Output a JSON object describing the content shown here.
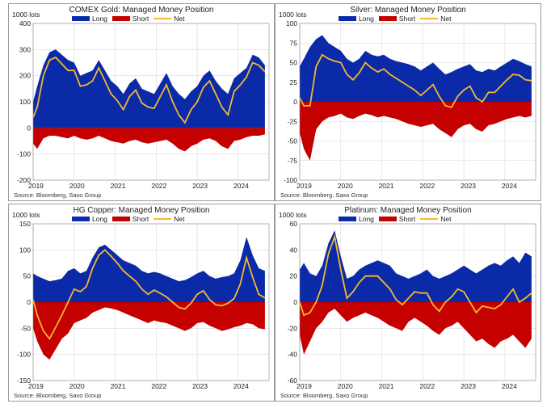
{
  "legend": {
    "long": "Long",
    "short": "Short",
    "net": "Net"
  },
  "colors": {
    "long": "#0a2aa8",
    "short": "#c40000",
    "net": "#f5b82e",
    "grid": "#d9d9d9"
  },
  "chart_data": [
    {
      "type": "area",
      "title": "COMEX Gold: Managed Money Position",
      "units": "1000 lots",
      "source": "Source: Bloomberg, Saxo Group",
      "ylim": [
        -200,
        400
      ],
      "yticks": [
        -200,
        -100,
        0,
        100,
        200,
        300,
        400
      ],
      "xticks": [
        "2019",
        "2020",
        "2021",
        "2022",
        "2023",
        "2024"
      ],
      "xlim": [
        2019.0,
        2024.75
      ],
      "x": [
        2019.0,
        2019.1,
        2019.25,
        2019.4,
        2019.55,
        2019.7,
        2019.85,
        2020.0,
        2020.15,
        2020.3,
        2020.45,
        2020.6,
        2020.75,
        2020.9,
        2021.05,
        2021.2,
        2021.35,
        2021.5,
        2021.65,
        2021.8,
        2021.95,
        2022.1,
        2022.25,
        2022.4,
        2022.55,
        2022.7,
        2022.85,
        2023.0,
        2023.15,
        2023.3,
        2023.45,
        2023.6,
        2023.75,
        2023.9,
        2024.05,
        2024.2,
        2024.35,
        2024.5,
        2024.65
      ],
      "series": [
        {
          "name": "Long",
          "values": [
            100,
            160,
            240,
            290,
            300,
            280,
            260,
            250,
            200,
            210,
            220,
            260,
            220,
            180,
            160,
            130,
            170,
            190,
            150,
            140,
            130,
            170,
            210,
            160,
            130,
            110,
            140,
            160,
            200,
            220,
            180,
            150,
            130,
            190,
            210,
            230,
            280,
            270,
            240
          ]
        },
        {
          "name": "Short",
          "values": [
            -60,
            -80,
            -40,
            -30,
            -30,
            -35,
            -40,
            -30,
            -40,
            -45,
            -40,
            -30,
            -40,
            -50,
            -55,
            -60,
            -50,
            -45,
            -55,
            -60,
            -55,
            -50,
            -45,
            -60,
            -80,
            -90,
            -70,
            -60,
            -45,
            -40,
            -50,
            -70,
            -80,
            -50,
            -45,
            -35,
            -30,
            -30,
            -25
          ]
        },
        {
          "name": "Net",
          "values": [
            40,
            80,
            200,
            260,
            270,
            245,
            220,
            220,
            160,
            165,
            180,
            230,
            180,
            130,
            105,
            70,
            120,
            145,
            95,
            80,
            75,
            120,
            165,
            100,
            50,
            20,
            70,
            100,
            155,
            180,
            130,
            80,
            50,
            140,
            165,
            195,
            250,
            240,
            215
          ]
        }
      ]
    },
    {
      "type": "area",
      "title": "Silver: Managed Money Position",
      "units": "1000 lots",
      "source": "Source: Bloomberg, Saxo Group",
      "ylim": [
        -100,
        100
      ],
      "yticks": [
        -100,
        -75,
        -50,
        -25,
        0,
        25,
        50,
        75,
        100
      ],
      "xticks": [
        "2019",
        "2020",
        "2021",
        "2022",
        "2023",
        "2024"
      ],
      "xlim": [
        2019.0,
        2024.75
      ],
      "x": [
        2019.0,
        2019.1,
        2019.25,
        2019.4,
        2019.55,
        2019.7,
        2019.85,
        2020.0,
        2020.15,
        2020.3,
        2020.45,
        2020.6,
        2020.75,
        2020.9,
        2021.05,
        2021.2,
        2021.35,
        2021.5,
        2021.65,
        2021.8,
        2021.95,
        2022.1,
        2022.25,
        2022.4,
        2022.55,
        2022.7,
        2022.85,
        2023.0,
        2023.15,
        2023.3,
        2023.45,
        2023.6,
        2023.75,
        2023.9,
        2024.05,
        2024.2,
        2024.35,
        2024.5,
        2024.65
      ],
      "series": [
        {
          "name": "Long",
          "values": [
            45,
            55,
            70,
            80,
            85,
            75,
            70,
            65,
            55,
            50,
            55,
            65,
            60,
            58,
            60,
            55,
            52,
            50,
            48,
            45,
            40,
            45,
            50,
            42,
            35,
            38,
            42,
            45,
            48,
            40,
            38,
            42,
            40,
            45,
            50,
            55,
            52,
            48,
            45
          ]
        },
        {
          "name": "Short",
          "values": [
            -40,
            -60,
            -75,
            -35,
            -25,
            -20,
            -18,
            -15,
            -20,
            -22,
            -18,
            -15,
            -17,
            -20,
            -18,
            -20,
            -22,
            -25,
            -28,
            -30,
            -32,
            -30,
            -28,
            -35,
            -40,
            -45,
            -35,
            -30,
            -28,
            -35,
            -38,
            -30,
            -28,
            -25,
            -22,
            -20,
            -18,
            -20,
            -18
          ]
        },
        {
          "name": "Net",
          "values": [
            5,
            -5,
            -5,
            45,
            60,
            55,
            52,
            50,
            35,
            28,
            37,
            50,
            43,
            38,
            42,
            35,
            30,
            25,
            20,
            15,
            8,
            15,
            22,
            7,
            -5,
            -7,
            7,
            15,
            20,
            5,
            0,
            12,
            12,
            20,
            28,
            35,
            34,
            28,
            27
          ]
        }
      ]
    },
    {
      "type": "area",
      "title": "HG Copper: Managed Money Position",
      "units": "1000 lots",
      "source": "Source: Bloomberg, Saxo Group",
      "ylim": [
        -150,
        150
      ],
      "yticks": [
        -150,
        -100,
        -50,
        0,
        50,
        100,
        150
      ],
      "xticks": [
        "2019",
        "2020",
        "2021",
        "2022",
        "2023",
        "2024"
      ],
      "xlim": [
        2019.0,
        2024.75
      ],
      "x": [
        2019.0,
        2019.1,
        2019.25,
        2019.4,
        2019.55,
        2019.7,
        2019.85,
        2020.0,
        2020.15,
        2020.3,
        2020.45,
        2020.6,
        2020.75,
        2020.9,
        2021.05,
        2021.2,
        2021.35,
        2021.5,
        2021.65,
        2021.8,
        2021.95,
        2022.1,
        2022.25,
        2022.4,
        2022.55,
        2022.7,
        2022.85,
        2023.0,
        2023.15,
        2023.3,
        2023.45,
        2023.6,
        2023.75,
        2023.9,
        2024.05,
        2024.2,
        2024.35,
        2024.5,
        2024.65
      ],
      "series": [
        {
          "name": "Long",
          "values": [
            55,
            50,
            45,
            40,
            42,
            45,
            60,
            65,
            55,
            60,
            85,
            105,
            110,
            100,
            90,
            80,
            75,
            70,
            60,
            55,
            58,
            55,
            50,
            45,
            40,
            42,
            48,
            55,
            60,
            50,
            45,
            48,
            50,
            55,
            80,
            125,
            90,
            65,
            60
          ]
        },
        {
          "name": "Short",
          "values": [
            -50,
            -75,
            -100,
            -110,
            -90,
            -70,
            -60,
            -40,
            -35,
            -30,
            -20,
            -15,
            -10,
            -12,
            -15,
            -20,
            -25,
            -30,
            -35,
            -40,
            -35,
            -38,
            -40,
            -45,
            -50,
            -55,
            -50,
            -40,
            -38,
            -45,
            -50,
            -55,
            -52,
            -48,
            -45,
            -40,
            -42,
            -50,
            -52
          ]
        },
        {
          "name": "Net",
          "values": [
            5,
            -25,
            -55,
            -70,
            -48,
            -25,
            0,
            25,
            20,
            30,
            65,
            90,
            100,
            88,
            75,
            60,
            50,
            40,
            25,
            15,
            23,
            17,
            10,
            0,
            -10,
            -13,
            -2,
            15,
            22,
            5,
            -5,
            -7,
            -2,
            7,
            35,
            85,
            48,
            15,
            8
          ]
        }
      ]
    },
    {
      "type": "area",
      "title": "Platinum: Managed Money Position",
      "units": "1000 lots",
      "source": "Source: Bloomberg, Saxo Group",
      "ylim": [
        -60,
        60
      ],
      "yticks": [
        -60,
        -40,
        -20,
        0,
        20,
        40,
        60
      ],
      "xticks": [
        "2019",
        "2020",
        "2021",
        "2022",
        "2023",
        "2024"
      ],
      "xlim": [
        2019.0,
        2024.75
      ],
      "x": [
        2019.0,
        2019.1,
        2019.25,
        2019.4,
        2019.55,
        2019.7,
        2019.85,
        2020.0,
        2020.15,
        2020.3,
        2020.45,
        2020.6,
        2020.75,
        2020.9,
        2021.05,
        2021.2,
        2021.35,
        2021.5,
        2021.65,
        2021.8,
        2021.95,
        2022.1,
        2022.25,
        2022.4,
        2022.55,
        2022.7,
        2022.85,
        2023.0,
        2023.15,
        2023.3,
        2023.45,
        2023.6,
        2023.75,
        2023.9,
        2024.05,
        2024.2,
        2024.35,
        2024.5,
        2024.65
      ],
      "series": [
        {
          "name": "Long",
          "values": [
            25,
            30,
            22,
            20,
            28,
            45,
            55,
            35,
            18,
            20,
            25,
            28,
            30,
            32,
            30,
            28,
            22,
            20,
            18,
            20,
            22,
            25,
            20,
            18,
            20,
            22,
            25,
            28,
            25,
            22,
            25,
            28,
            30,
            28,
            32,
            35,
            30,
            38,
            35
          ]
        },
        {
          "name": "Short",
          "values": [
            -25,
            -40,
            -30,
            -20,
            -15,
            -8,
            -5,
            -10,
            -15,
            -12,
            -10,
            -8,
            -10,
            -12,
            -15,
            -18,
            -20,
            -22,
            -15,
            -12,
            -15,
            -18,
            -22,
            -25,
            -20,
            -18,
            -15,
            -20,
            -25,
            -30,
            -28,
            -32,
            -35,
            -30,
            -28,
            -25,
            -30,
            -35,
            -28
          ]
        },
        {
          "name": "Net",
          "values": [
            0,
            -10,
            -8,
            0,
            13,
            37,
            50,
            25,
            3,
            8,
            15,
            20,
            20,
            20,
            15,
            10,
            2,
            -2,
            3,
            8,
            7,
            7,
            -2,
            -7,
            0,
            4,
            10,
            8,
            0,
            -8,
            -3,
            -4,
            -5,
            -2,
            4,
            10,
            0,
            3,
            7
          ]
        }
      ]
    }
  ]
}
